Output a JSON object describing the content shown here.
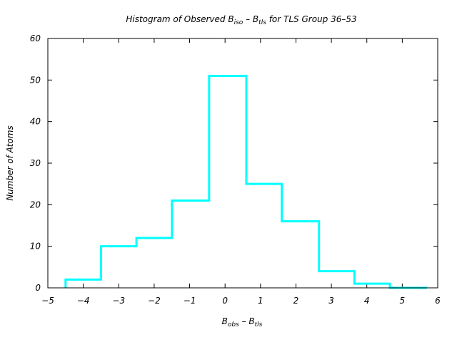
{
  "chart_data": {
    "type": "histogram",
    "title": {
      "prefix": "Histogram of Observed B",
      "sub1": "iso",
      "mid": " – B",
      "sub2": "tls",
      "suffix": " for TLS Group 36–53"
    },
    "xlabel": {
      "base1": "B",
      "sub1": "obs",
      "mid": " – B",
      "sub2": "tls"
    },
    "ylabel": "Number of Atoms",
    "xlim": [
      -5,
      6
    ],
    "ylim": [
      0,
      60
    ],
    "xticks": [
      -5,
      -4,
      -3,
      -2,
      -1,
      0,
      1,
      2,
      3,
      4,
      5,
      6
    ],
    "yticks": [
      0,
      10,
      20,
      30,
      40,
      50,
      60
    ],
    "bin_edges": [
      -4.5,
      -3.5,
      -2.5,
      -1.5,
      -0.45,
      0.6,
      1.6,
      2.65,
      3.65,
      4.65,
      5.7
    ],
    "values": [
      2,
      10,
      12,
      21,
      51,
      25,
      16,
      4,
      1,
      0
    ],
    "line_color": "#00ffff",
    "grid": false
  }
}
